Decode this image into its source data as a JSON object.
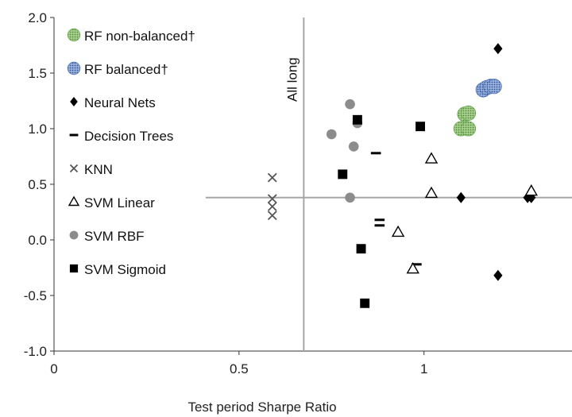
{
  "chart_data": {
    "type": "scatter",
    "xlabel": "Test period Sharpe Ratio",
    "ylabel": "",
    "xlim": [
      0,
      1.4
    ],
    "ylim": [
      -1.0,
      2.0
    ],
    "x_ticks": [
      0,
      0.5,
      1
    ],
    "x_tick_labels": [
      "0",
      "0.5",
      "1"
    ],
    "y_ticks": [
      -1.0,
      -0.5,
      0.0,
      0.5,
      1.0,
      1.5,
      2.0
    ],
    "y_tick_labels": [
      "-1.0",
      "-0.5",
      "0.0",
      "0.5",
      "1.0",
      "1.5",
      "2.0"
    ],
    "grid": false,
    "legend_position": "top-left",
    "reference_lines": {
      "vertical": {
        "x": 0.675,
        "label": "All long"
      },
      "horizontal": {
        "y": 0.38
      }
    },
    "series": [
      {
        "name": "RF non-balanced†",
        "marker": "dotted-circle",
        "color": "#6aa84f",
        "points": [
          [
            1.1,
            1.0
          ],
          [
            1.12,
            1.0
          ],
          [
            1.11,
            1.13
          ],
          [
            1.12,
            1.14
          ]
        ]
      },
      {
        "name": "RF balanced†",
        "marker": "dotted-circle",
        "color": "#4a6fb5",
        "points": [
          [
            1.16,
            1.35
          ],
          [
            1.17,
            1.37
          ],
          [
            1.18,
            1.38
          ],
          [
            1.19,
            1.38
          ]
        ]
      },
      {
        "name": "Neural Nets",
        "marker": "diamond",
        "color": "#000000",
        "points": [
          [
            1.2,
            1.72
          ],
          [
            1.1,
            0.38
          ],
          [
            1.28,
            0.38
          ],
          [
            1.29,
            0.38
          ],
          [
            1.2,
            -0.32
          ]
        ]
      },
      {
        "name": "Decision Trees",
        "marker": "dash",
        "color": "#000000",
        "points": [
          [
            0.87,
            0.78
          ],
          [
            0.88,
            0.18
          ],
          [
            0.88,
            0.13
          ],
          [
            0.98,
            -0.22
          ]
        ]
      },
      {
        "name": "KNN",
        "marker": "x",
        "color": "#555555",
        "points": [
          [
            0.59,
            0.56
          ],
          [
            0.59,
            0.37
          ],
          [
            0.59,
            0.3
          ],
          [
            0.59,
            0.22
          ]
        ]
      },
      {
        "name": "SVM Linear",
        "marker": "triangle",
        "color": "#000000",
        "points": [
          [
            1.02,
            0.73
          ],
          [
            1.02,
            0.42
          ],
          [
            0.93,
            0.07
          ],
          [
            0.97,
            -0.26
          ],
          [
            1.29,
            0.44
          ]
        ]
      },
      {
        "name": "SVM RBF",
        "marker": "circle",
        "color": "#8c8c8c",
        "points": [
          [
            0.8,
            1.22
          ],
          [
            0.82,
            1.05
          ],
          [
            0.75,
            0.95
          ],
          [
            0.81,
            0.84
          ],
          [
            0.8,
            0.38
          ]
        ]
      },
      {
        "name": "SVM Sigmoid",
        "marker": "square",
        "color": "#000000",
        "points": [
          [
            0.82,
            1.08
          ],
          [
            0.99,
            1.02
          ],
          [
            0.78,
            0.59
          ],
          [
            0.83,
            -0.08
          ],
          [
            0.84,
            -0.57
          ]
        ]
      }
    ]
  }
}
